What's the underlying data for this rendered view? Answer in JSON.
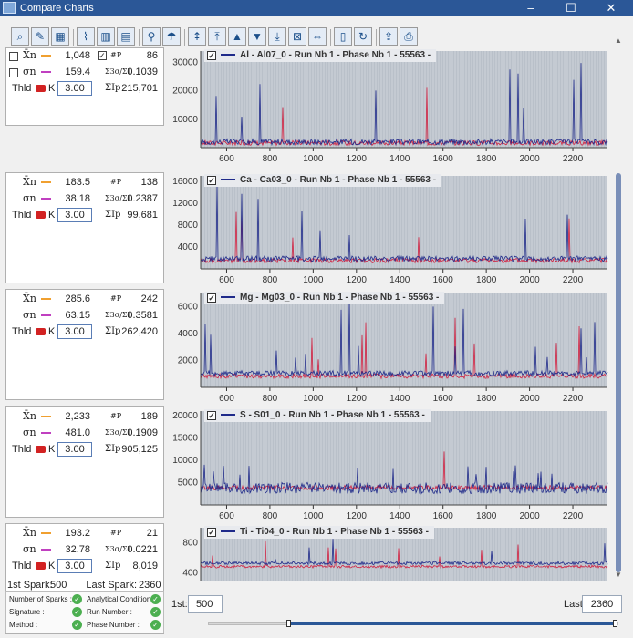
{
  "window": {
    "title": "Compare Charts",
    "minimize_glyph": "–",
    "maximize_glyph": "☐",
    "close_glyph": "✕"
  },
  "toolbar": {
    "icons": [
      "zoom-icon",
      "eraser-icon",
      "grid-icon",
      "chart-line-icon",
      "chart-bar-icon",
      "chart-table-icon",
      "pin-icon",
      "palette-icon",
      "scroll-top-icon",
      "move-top-icon",
      "move-up-icon",
      "move-down-icon",
      "move-bottom-icon",
      "delete-chart-icon",
      "fit-icon",
      "document-icon",
      "refresh-icon",
      "export-icon",
      "print-icon"
    ]
  },
  "charts": [
    {
      "legend": "Al - Al07_0 - Run Nb 1 - Phase Nb 1 - 55563 -",
      "stats": {
        "mean": "1,048",
        "sigma": "159.4",
        "count": "86",
        "ratio": "0.1039",
        "sum": "215,701",
        "k": "3.00"
      },
      "axes": {
        "y_ticks": [
          "30000",
          "20000",
          "10000"
        ],
        "x_ticks": [
          "600",
          "800",
          "1000",
          "1200",
          "1400",
          "1600",
          "1800",
          "2000",
          "2200"
        ]
      }
    },
    {
      "legend": "Ca - Ca03_0 - Run Nb 1 - Phase Nb 1 - 55563 -",
      "stats": {
        "mean": "183.5",
        "sigma": "38.18",
        "count": "138",
        "ratio": "0.2387",
        "sum": "99,681",
        "k": "3.00"
      },
      "axes": {
        "y_ticks": [
          "16000",
          "12000",
          "8000",
          "4000"
        ],
        "x_ticks": [
          "600",
          "800",
          "1000",
          "1200",
          "1400",
          "1600",
          "1800",
          "2000",
          "2200"
        ]
      }
    },
    {
      "legend": "Mg - Mg03_0 - Run Nb 1 - Phase Nb 1 - 55563 -",
      "stats": {
        "mean": "285.6",
        "sigma": "63.15",
        "count": "242",
        "ratio": "0.3581",
        "sum": "262,420",
        "k": "3.00"
      },
      "axes": {
        "y_ticks": [
          "6000",
          "4000",
          "2000"
        ],
        "x_ticks": [
          "600",
          "800",
          "1000",
          "1200",
          "1400",
          "1600",
          "1800",
          "2000",
          "2200"
        ]
      }
    },
    {
      "legend": "S - S01_0 - Run Nb 1 - Phase Nb 1 - 55563 -",
      "stats": {
        "mean": "2,233",
        "sigma": "481.0",
        "count": "189",
        "ratio": "0.1909",
        "sum": "905,125",
        "k": "3.00"
      },
      "axes": {
        "y_ticks": [
          "20000",
          "15000",
          "10000",
          "5000"
        ],
        "x_ticks": [
          "600",
          "800",
          "1000",
          "1200",
          "1400",
          "1600",
          "1800",
          "2000",
          "2200"
        ]
      }
    },
    {
      "legend": "Ti - Ti04_0 - Run Nb 1 - Phase Nb 1 - 55563 -",
      "stats": {
        "mean": "193.2",
        "sigma": "32.78",
        "count": "21",
        "ratio": "0.0221",
        "sum": "8,019",
        "k": "3.00"
      },
      "axes": {
        "y_ticks": [
          "800",
          "400"
        ],
        "x_ticks": []
      }
    }
  ],
  "labels": {
    "thld": "Thld",
    "k": "K",
    "count_sym": "#P",
    "ratio_sym": "Σ3σ/ΣI",
    "sum_sym": "ΣIp",
    "mean_sym": "X̄n",
    "sigma_sym": "σn",
    "check": "✓"
  },
  "range": {
    "first_label": "1st Spark:",
    "first_value": "500",
    "last_label": "Last Spark:",
    "last_value": "2360",
    "first_field_label": "1st:",
    "first_field_value": "500",
    "last_field_label": "Last:",
    "last_field_value": "2360"
  },
  "summary": [
    {
      "label": "Number of Sparks :"
    },
    {
      "label": "Analytical Condition :"
    },
    {
      "label": "Signature :"
    },
    {
      "label": "Run Number :"
    },
    {
      "label": "Method :"
    },
    {
      "label": "Phase Number :"
    }
  ],
  "colors": {
    "accent": "#2b5797",
    "mean_line": "#f0a030",
    "sigma_line": "#c040c0",
    "threshold": "#d22222",
    "series_main": "#1f2a8a",
    "series_alt": "#d02040"
  }
}
